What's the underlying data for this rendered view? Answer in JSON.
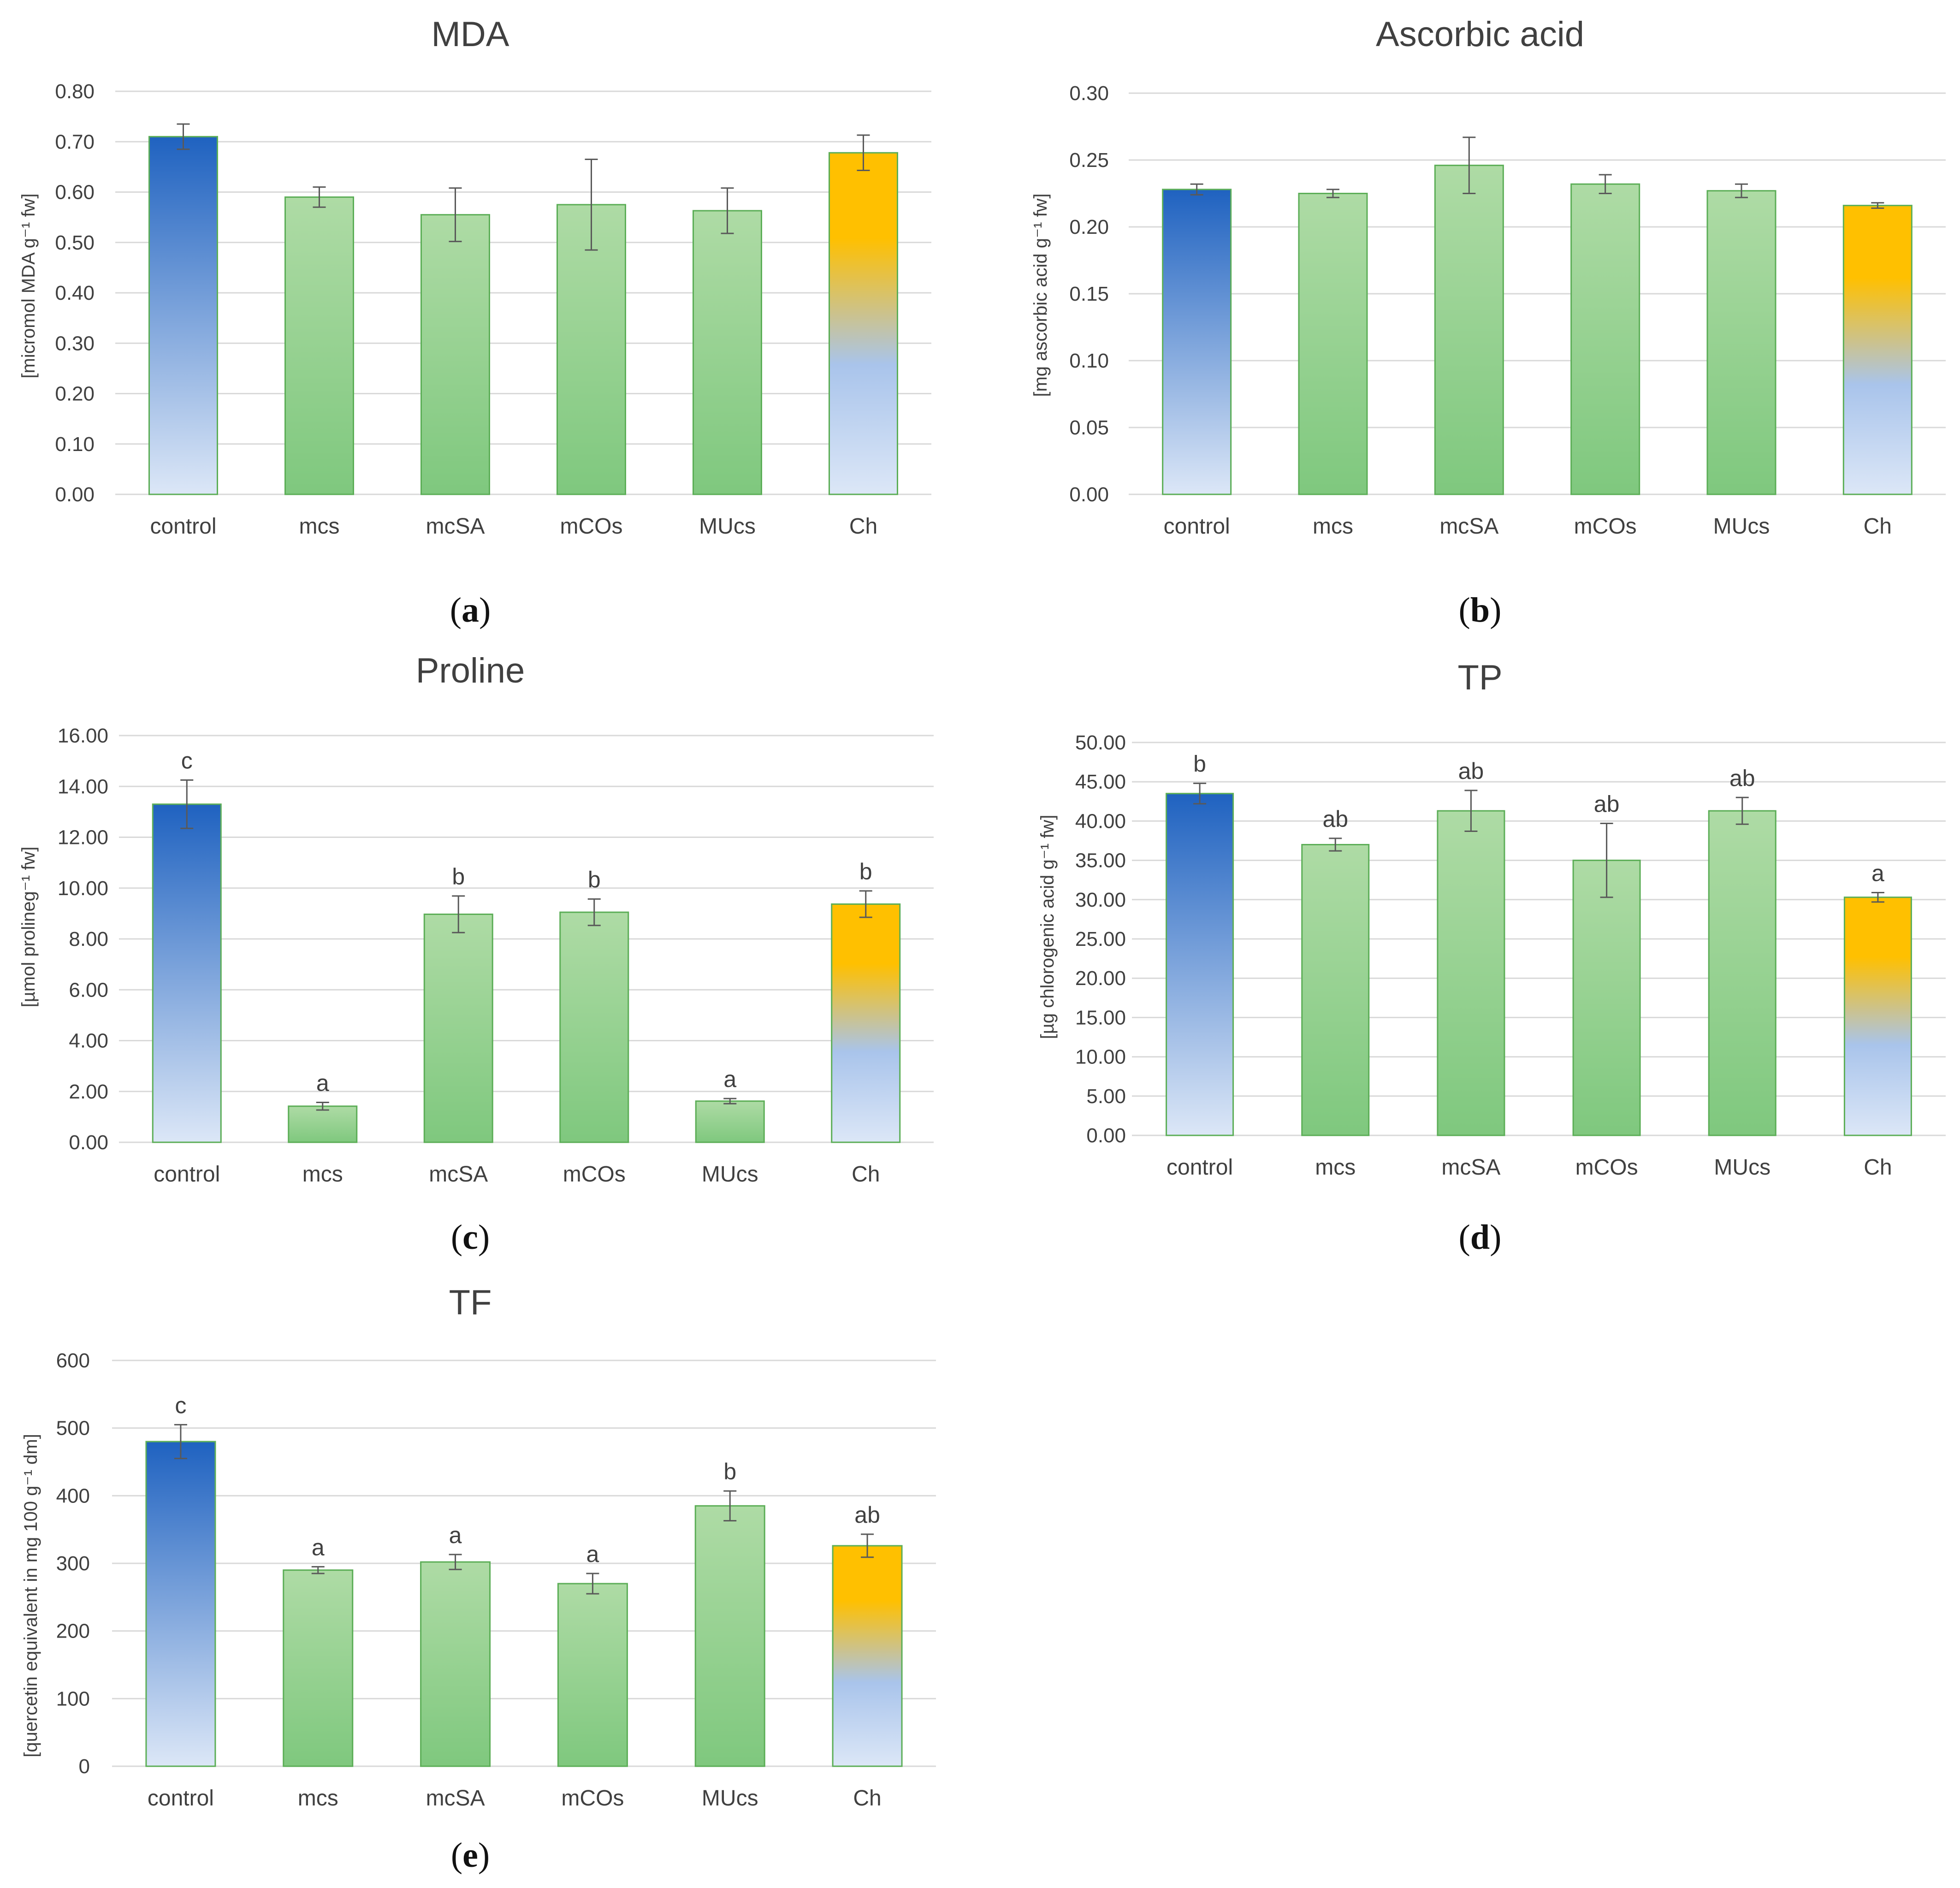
{
  "colors": {
    "control_top": "#1f62c0",
    "control_bottom": "#dce7f7",
    "green_top": "#aedba5",
    "green_bottom": "#7fc87e",
    "green_stroke": "#5cae57",
    "ch_top": "#ffc000",
    "ch_mid": "#a9c4eb",
    "grid": "#d9d9d9",
    "text": "#404040"
  },
  "chart_data": [
    {
      "id": "a",
      "type": "bar",
      "title": "MDA",
      "caption": "a",
      "ylabel": "[micromol MDA g⁻¹ fw]",
      "categories": [
        "control",
        "mcs",
        "mcSA",
        "mCOs",
        "MUcs",
        "Ch"
      ],
      "values": [
        0.71,
        0.59,
        0.555,
        0.575,
        0.563,
        0.678
      ],
      "errors": [
        0.025,
        0.02,
        0.053,
        0.09,
        0.045,
        0.035
      ],
      "letters": [
        "",
        "",
        "",
        "",
        "",
        ""
      ],
      "yticks": [
        "0.00",
        "0.10",
        "0.20",
        "0.30",
        "0.40",
        "0.50",
        "0.60",
        "0.70",
        "0.80"
      ],
      "ylim": [
        0,
        0.8
      ]
    },
    {
      "id": "b",
      "type": "bar",
      "title": "Ascorbic  acid",
      "caption": "b",
      "ylabel": "[mg ascorbic acid g⁻¹ fw]",
      "categories": [
        "control",
        "mcs",
        "mcSA",
        "mCOs",
        "MUcs",
        "Ch"
      ],
      "values": [
        0.228,
        0.225,
        0.246,
        0.232,
        0.227,
        0.216
      ],
      "errors": [
        0.004,
        0.003,
        0.021,
        0.007,
        0.005,
        0.002
      ],
      "letters": [
        "",
        "",
        "",
        "",
        "",
        ""
      ],
      "yticks": [
        "0.00",
        "0.05",
        "0.10",
        "0.15",
        "0.20",
        "0.25",
        "0.30"
      ],
      "ylim": [
        0,
        0.3
      ]
    },
    {
      "id": "c",
      "type": "bar",
      "title": "Proline",
      "caption": "c",
      "ylabel": "[µmol prolineg⁻¹ fw]",
      "categories": [
        "control",
        "mcs",
        "mcSA",
        "mCOs",
        "MUcs",
        "Ch"
      ],
      "values": [
        13.3,
        1.42,
        8.97,
        9.05,
        1.62,
        9.37
      ],
      "errors": [
        0.95,
        0.15,
        0.72,
        0.52,
        0.1,
        0.52
      ],
      "letters": [
        "c",
        "a",
        "b",
        "b",
        "a",
        "b"
      ],
      "yticks": [
        "0.00",
        "2.00",
        "4.00",
        "6.00",
        "8.00",
        "10.00",
        "12.00",
        "14.00",
        "16.00"
      ],
      "ylim": [
        0,
        16
      ]
    },
    {
      "id": "d",
      "type": "bar",
      "title": "TP",
      "caption": "d",
      "ylabel": "[µg chlorogenic acid g⁻¹ fw]",
      "categories": [
        "control",
        "mcs",
        "mcSA",
        "mCOs",
        "MUcs",
        "Ch"
      ],
      "values": [
        43.5,
        37.0,
        41.3,
        35.0,
        41.3,
        30.3
      ],
      "errors": [
        1.3,
        0.8,
        2.6,
        4.7,
        1.7,
        0.6
      ],
      "letters": [
        "b",
        "ab",
        "ab",
        "ab",
        "ab",
        "a"
      ],
      "yticks": [
        "0.00",
        "5.00",
        "10.00",
        "15.00",
        "20.00",
        "25.00",
        "30.00",
        "35.00",
        "40.00",
        "45.00",
        "50.00"
      ],
      "ylim": [
        0,
        50
      ]
    },
    {
      "id": "e",
      "type": "bar",
      "title": "TF",
      "caption": "e",
      "ylabel": "[quercetin equivalent in mg 100 g⁻¹ dm]",
      "categories": [
        "control",
        "mcs",
        "mcSA",
        "mCOs",
        "MUcs",
        "Ch"
      ],
      "values": [
        480,
        290,
        302,
        270,
        385,
        326
      ],
      "errors": [
        25,
        5,
        11,
        15,
        22,
        17
      ],
      "letters": [
        "c",
        "a",
        "a",
        "a",
        "b",
        "ab"
      ],
      "yticks": [
        "0",
        "100",
        "200",
        "300",
        "400",
        "500",
        "600"
      ],
      "ylim": [
        0,
        600
      ]
    }
  ]
}
